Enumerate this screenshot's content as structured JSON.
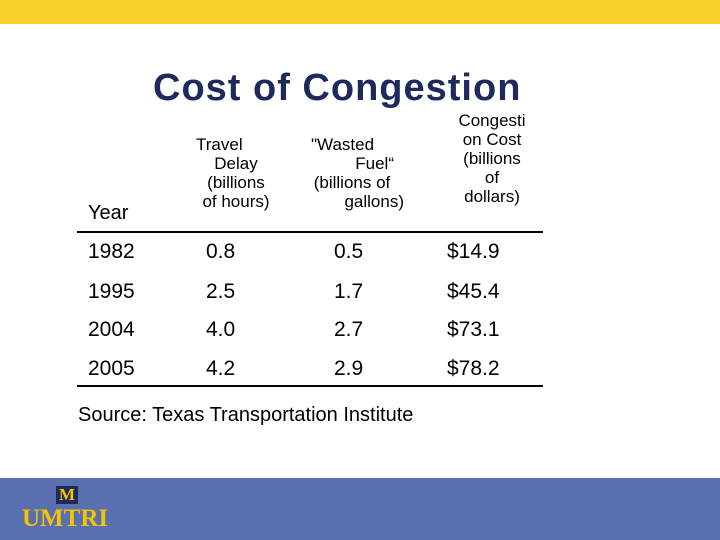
{
  "slide": {
    "title": "Cost of Congestion",
    "source": "Source: Texas Transportation Institute"
  },
  "colors": {
    "top_bar": "#fbd12b",
    "footer_bar": "#5a6fb0",
    "title": "#1f2a5c",
    "text": "#000000",
    "logo_gold": "#f3c400"
  },
  "table": {
    "headers": {
      "year": "Year",
      "travel_delay": [
        "Travel",
        "Delay",
        "(billions",
        "of hours)"
      ],
      "wasted_fuel": [
        "\"Wasted",
        "Fuel“",
        "(billions of",
        "gallons)"
      ],
      "congestion_cost": [
        "Congesti",
        "on Cost",
        "(billions",
        "of",
        "dollars)"
      ]
    },
    "rows": [
      {
        "year": "1982",
        "travel_delay": "0.8",
        "wasted_fuel": "0.5",
        "congestion_cost": "$14.9"
      },
      {
        "year": "1995",
        "travel_delay": "2.5",
        "wasted_fuel": "1.7",
        "congestion_cost": "$45.4"
      },
      {
        "year": "2004",
        "travel_delay": "4.0",
        "wasted_fuel": "2.7",
        "congestion_cost": "$73.1"
      },
      {
        "year": "2005",
        "travel_delay": "4.2",
        "wasted_fuel": "2.9",
        "congestion_cost": "$78.2"
      }
    ]
  },
  "logo": {
    "emblem": "M",
    "wordmark": "UMTRI",
    "icon": "university-m-block-icon"
  }
}
